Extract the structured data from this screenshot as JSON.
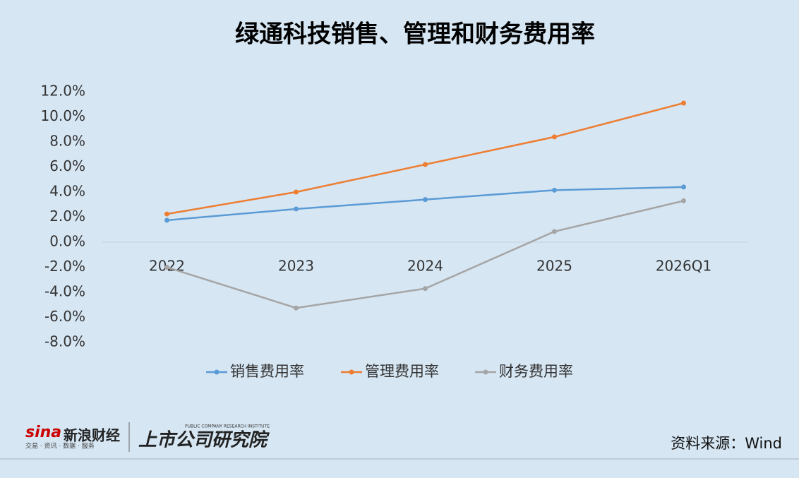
{
  "chart_data": {
    "type": "line",
    "title": "绿通科技销售、管理和财务费用率",
    "categories": [
      "2022",
      "2023",
      "2024",
      "2025",
      "2026Q1"
    ],
    "series": [
      {
        "name": "销售费用率",
        "color": "#5b9bd5",
        "values": [
          1.75,
          2.65,
          3.4,
          4.15,
          4.4
        ]
      },
      {
        "name": "管理费用率",
        "color": "#ed7d31",
        "values": [
          2.25,
          4.0,
          6.2,
          8.4,
          11.1
        ]
      },
      {
        "name": "财务费用率",
        "color": "#a5a5a5",
        "values": [
          -2.0,
          -5.25,
          -3.7,
          0.85,
          3.3
        ]
      }
    ],
    "ylim": [
      -8,
      12
    ],
    "yticks": [
      {
        "value": -8,
        "label": "-8.0%"
      },
      {
        "value": -6,
        "label": "-6.0%"
      },
      {
        "value": -4,
        "label": "-4.0%"
      },
      {
        "value": -2,
        "label": "-2.0%"
      },
      {
        "value": 0,
        "label": "0.0%"
      },
      {
        "value": 2,
        "label": "2.0%"
      },
      {
        "value": 4,
        "label": "4.0%"
      },
      {
        "value": 6,
        "label": "6.0%"
      },
      {
        "value": 8,
        "label": "8.0%"
      },
      {
        "value": 10,
        "label": "10.0%"
      },
      {
        "value": 12,
        "label": "12.0%"
      }
    ],
    "legend": "bottom"
  },
  "footer": {
    "source": "资料来源：Wind",
    "brand": "新浪财经",
    "brand_tagline": "交易 · 资讯 · 数据 · 服务",
    "institute": "上市公司研究院",
    "institute_en": "PUBLIC COMPANY RESEARCH INSTITUTE"
  }
}
